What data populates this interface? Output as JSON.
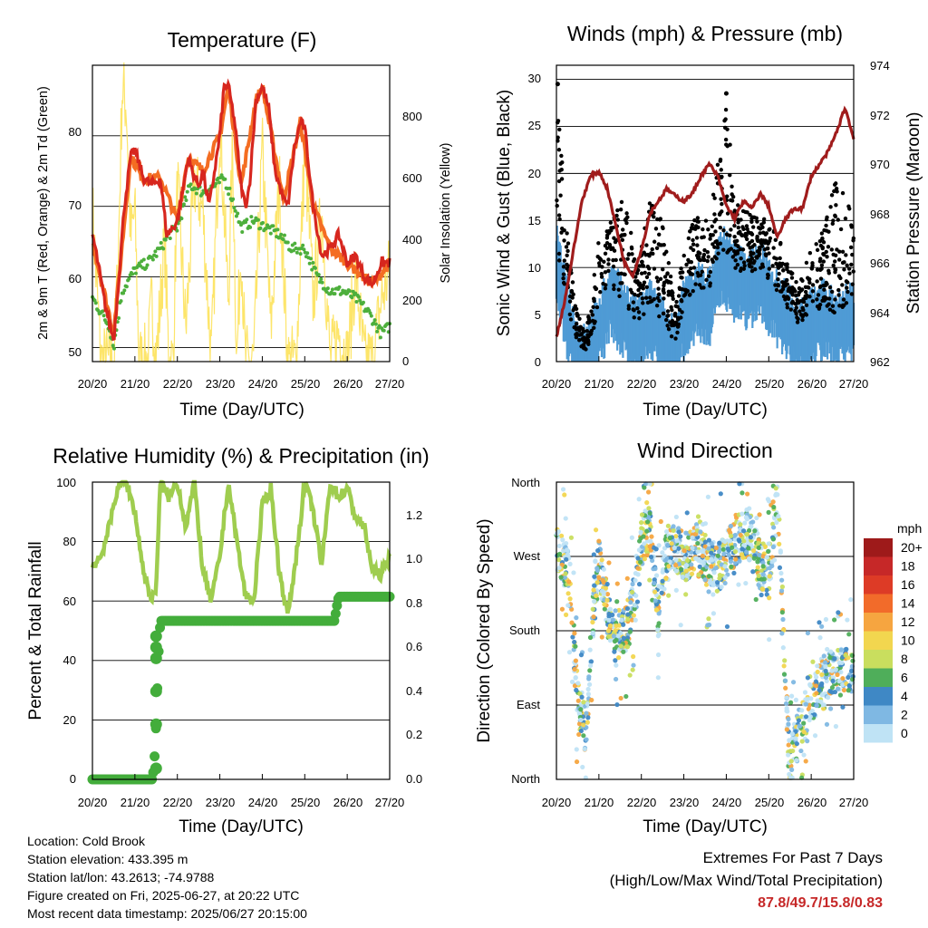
{
  "temperature": {
    "title": "Temperature (F)",
    "ylabel_left": "2m & 9m T (Red, Orange) & 2m Td (Green)",
    "ylabel_right": "Solar Insolation (Yellow)",
    "xlabel": "Time (Day/UTC)",
    "left_ticks": [
      "50",
      "60",
      "70",
      "80"
    ],
    "right_ticks": [
      "0",
      "200",
      "400",
      "600",
      "800"
    ],
    "colors": {
      "t2m": "#d7261e",
      "t9m": "#f46d22",
      "td": "#4daf3c",
      "solar": "#fde25a"
    }
  },
  "winds": {
    "title": "Winds (mph) & Pressure (mb)",
    "ylabel_left": "Sonic Wind & Gust (Blue, Black)",
    "ylabel_right": "Station Pressure (Maroon)",
    "xlabel": "Time (Day/UTC)",
    "left_ticks": [
      "0",
      "5",
      "10",
      "15",
      "20",
      "25",
      "30"
    ],
    "right_ticks": [
      "962",
      "964",
      "966",
      "968",
      "970",
      "972",
      "974"
    ],
    "colors": {
      "wind": "#4f9bd5",
      "gust": "#000000",
      "pressure": "#a01c1c"
    }
  },
  "humidity": {
    "title": "Relative Humidity (%) & Precipitation (in)",
    "ylabel_left": "Percent & Total Rainfall",
    "xlabel": "Time (Day/UTC)",
    "left_ticks": [
      "0",
      "20",
      "40",
      "60",
      "80",
      "100"
    ],
    "right_ticks": [
      "0.0",
      "0.2",
      "0.4",
      "0.6",
      "0.8",
      "1.0",
      "1.2"
    ],
    "colors": {
      "rh": "#9fcd4f",
      "precip": "#43ad3b"
    }
  },
  "direction": {
    "title": "Wind Direction",
    "ylabel_left": "Direction (Colored By Speed)",
    "xlabel": "Time (Day/UTC)",
    "ticks": [
      "North",
      "East",
      "South",
      "West",
      "North"
    ],
    "legend_title": "mph",
    "legend_labels": [
      "20+",
      "18",
      "16",
      "14",
      "12",
      "10",
      "8",
      "6",
      "4",
      "2",
      "0"
    ],
    "legend_colors": [
      "#9e1a1a",
      "#c62828",
      "#dd3b26",
      "#f26b2a",
      "#f6a540",
      "#f2d64f",
      "#c9de5e",
      "#4fae5a",
      "#3f88c5",
      "#7fb8e3",
      "#bfe3f5"
    ]
  },
  "x_ticks": [
    "20/20",
    "21/20",
    "22/20",
    "23/20",
    "24/20",
    "25/20",
    "26/20",
    "27/20"
  ],
  "info": {
    "location": "Location: Cold Brook",
    "elevation": "Station elevation: 433.395 m",
    "latlon": "Station lat/lon: 43.2613; -74.9788",
    "created": "Figure created on Fri, 2025-06-27, at 20:22 UTC",
    "recent": "Most recent data timestamp: 2025/06/27 20:15:00"
  },
  "extremes": {
    "line1": "Extremes For Past 7 Days",
    "line2": "(High/Low/Max Wind/Total Precipitation)",
    "values": "87.8/49.7/15.8/0.83"
  },
  "chart_data": [
    {
      "type": "line",
      "title": "Temperature (F)",
      "xlabel": "Time (Day/UTC)",
      "ylabel": "2m & 9m T (Red, Orange) & 2m Td (Green)",
      "ylim": [
        48,
        90
      ],
      "y2lim": [
        0,
        980
      ],
      "x_unit": "days since 20/20",
      "series": [
        {
          "name": "2m T",
          "axis": "left",
          "x": [
            0,
            0.1,
            0.3,
            0.5,
            0.6,
            0.75,
            0.9,
            1.0,
            1.2,
            1.4,
            1.6,
            1.75,
            1.9,
            2.0,
            2.15,
            2.25,
            2.35,
            2.5,
            2.6,
            2.75,
            2.9,
            3.0,
            3.1,
            3.2,
            3.35,
            3.5,
            3.6,
            3.7,
            3.85,
            4.0,
            4.15,
            4.3,
            4.5,
            4.6,
            4.75,
            4.9,
            5.0,
            5.2,
            5.4,
            5.6,
            5.8,
            6.0,
            6.2,
            6.4,
            6.6,
            6.8,
            7.0
          ],
          "y": [
            66,
            63,
            56,
            51,
            58,
            70,
            77,
            78,
            74,
            73,
            74,
            66,
            67,
            68,
            73,
            77,
            75,
            73,
            75,
            70,
            76,
            80,
            87,
            87,
            82,
            73,
            70,
            73,
            85,
            87,
            84,
            75,
            71,
            70,
            78,
            82,
            81,
            70,
            63,
            64,
            66,
            62,
            63,
            60,
            59,
            62,
            62
          ]
        },
        {
          "name": "9m T",
          "axis": "left",
          "x": [
            0,
            0.5,
            0.9,
            1.2,
            1.6,
            2.0,
            2.25,
            2.6,
            3.0,
            3.2,
            3.5,
            3.85,
            4.0,
            4.5,
            4.9,
            5.2,
            5.6,
            6.0,
            6.6,
            7.0
          ],
          "y": [
            65,
            52,
            77,
            74,
            74,
            68,
            77,
            75,
            80,
            87,
            73,
            85,
            87,
            71,
            82,
            70,
            64,
            62,
            59,
            62
          ]
        },
        {
          "name": "2m Td",
          "axis": "left",
          "x": [
            0,
            0.2,
            0.4,
            0.5,
            0.7,
            1.0,
            1.3,
            1.6,
            1.8,
            2.0,
            2.3,
            2.6,
            2.9,
            3.1,
            3.3,
            3.5,
            3.8,
            4.1,
            4.4,
            4.7,
            5.0,
            5.3,
            5.6,
            5.9,
            6.2,
            6.5,
            6.8,
            7.0
          ],
          "y": [
            57,
            55,
            53,
            50,
            58,
            61,
            62,
            64,
            66,
            67,
            73,
            72,
            73,
            74,
            71,
            67,
            68,
            67,
            66,
            64,
            64,
            60,
            58,
            58,
            57,
            55,
            52,
            53
          ]
        },
        {
          "name": "Solar Insolation",
          "axis": "right",
          "x": [
            0,
            0.2,
            0.35,
            0.5,
            0.6,
            0.7,
            0.8,
            0.9,
            1.0,
            1.1,
            1.2,
            1.3,
            1.4,
            1.5,
            1.6,
            1.7,
            1.8,
            1.9,
            2.0,
            2.2,
            2.4,
            2.6,
            2.8,
            3.0,
            3.2,
            3.3,
            3.4,
            3.5,
            3.6,
            3.8,
            4.0,
            4.2,
            4.4,
            4.6,
            4.8,
            5.0,
            5.2,
            5.4,
            5.6,
            5.8,
            6.0,
            6.2,
            6.4,
            6.6,
            6.8,
            7.0
          ],
          "y": [
            500,
            0,
            0,
            0,
            300,
            900,
            850,
            400,
            500,
            0,
            0,
            0,
            200,
            0,
            200,
            400,
            0,
            0,
            600,
            100,
            600,
            500,
            0,
            800,
            200,
            700,
            0,
            400,
            0,
            0,
            700,
            100,
            600,
            0,
            0,
            700,
            200,
            500,
            0,
            100,
            0,
            300,
            0,
            0,
            200,
            300
          ]
        }
      ]
    },
    {
      "type": "scatter",
      "title": "Winds (mph) & Pressure (mb)",
      "xlabel": "Time (Day/UTC)",
      "ylabel": "Sonic Wind & Gust (Blue, Black)",
      "ylim": [
        0,
        31.5
      ],
      "y2lim": [
        962,
        974
      ],
      "series": [
        {
          "name": "Pressure",
          "axis": "right",
          "x": [
            0,
            0.2,
            0.4,
            0.6,
            0.8,
            1.0,
            1.2,
            1.4,
            1.6,
            1.8,
            2.0,
            2.2,
            2.4,
            2.6,
            2.8,
            3.0,
            3.2,
            3.4,
            3.6,
            3.8,
            4.0,
            4.2,
            4.4,
            4.6,
            4.8,
            5.0,
            5.2,
            5.4,
            5.6,
            5.8,
            6.0,
            6.2,
            6.4,
            6.6,
            6.8,
            7.0
          ],
          "y": [
            963,
            964.5,
            966.5,
            968.5,
            969.5,
            969.7,
            969,
            967.5,
            966,
            965.5,
            966.5,
            968,
            968.5,
            969,
            968.7,
            968.5,
            968.8,
            969.5,
            970,
            969.5,
            968.3,
            967.8,
            968.5,
            968.2,
            968.8,
            968.3,
            967,
            967.8,
            968.2,
            968.2,
            969.5,
            970,
            970.5,
            971.3,
            972.3,
            971
          ]
        },
        {
          "name": "Sonic Wind",
          "axis": "left",
          "x": [
            0,
            0.3,
            0.5,
            0.7,
            1.0,
            1.3,
            1.6,
            1.9,
            2.2,
            2.5,
            2.8,
            3.0,
            3.3,
            3.6,
            3.9,
            4.2,
            4.5,
            4.8,
            5.1,
            5.4,
            5.7,
            6.0,
            6.3,
            6.6,
            6.9
          ],
          "y": [
            12,
            5,
            2,
            1,
            5,
            8,
            6,
            4,
            6,
            4,
            2,
            6,
            8,
            7,
            12,
            10,
            9,
            10,
            8,
            6,
            4,
            5,
            6,
            5,
            6
          ]
        },
        {
          "name": "Gust",
          "axis": "left",
          "x": [
            0,
            0.3,
            0.5,
            0.7,
            1.0,
            1.3,
            1.6,
            1.9,
            2.2,
            2.5,
            2.8,
            3.0,
            3.3,
            3.6,
            3.9,
            4.0,
            4.2,
            4.5,
            4.8,
            5.1,
            5.4,
            5.7,
            6.0,
            6.3,
            6.6,
            6.9
          ],
          "y": [
            29.5,
            12,
            5,
            3,
            13,
            15,
            18,
            10,
            17,
            15,
            6,
            12,
            16,
            15,
            24,
            28.5,
            17,
            16,
            16,
            15,
            11,
            8,
            12,
            14,
            20,
            17
          ]
        }
      ]
    },
    {
      "type": "line",
      "title": "Relative Humidity (%) & Precipitation (in)",
      "xlabel": "Time (Day/UTC)",
      "ylabel": "Percent & Total Rainfall",
      "ylim": [
        0,
        100
      ],
      "y2lim": [
        0,
        1.35
      ],
      "series": [
        {
          "name": "RH",
          "axis": "left",
          "x": [
            0,
            0.2,
            0.4,
            0.6,
            0.8,
            1.0,
            1.2,
            1.4,
            1.5,
            1.6,
            1.8,
            2.0,
            2.2,
            2.4,
            2.6,
            2.8,
            3.0,
            3.2,
            3.4,
            3.6,
            3.8,
            4.0,
            4.2,
            4.4,
            4.6,
            4.8,
            5.0,
            5.2,
            5.4,
            5.6,
            5.8,
            6.0,
            6.2,
            6.4,
            6.6,
            6.8,
            7.0
          ],
          "y": [
            72,
            75,
            85,
            99,
            100,
            90,
            70,
            60,
            65,
            100,
            95,
            100,
            85,
            100,
            70,
            60,
            75,
            100,
            80,
            62,
            60,
            92,
            98,
            70,
            55,
            75,
            100,
            90,
            72,
            100,
            95,
            98,
            88,
            85,
            70,
            69,
            75
          ]
        },
        {
          "name": "Total Precipitation",
          "axis": "right",
          "x": [
            0,
            0.5,
            1.0,
            1.4,
            1.45,
            1.5,
            1.55,
            1.6,
            1.8,
            2.5,
            3.0,
            4.0,
            5.0,
            5.7,
            5.75,
            5.8,
            6.0,
            6.5,
            7.0
          ],
          "y": [
            0,
            0,
            0,
            0,
            0.05,
            0.25,
            0.55,
            0.72,
            0.72,
            0.72,
            0.72,
            0.72,
            0.72,
            0.72,
            0.78,
            0.83,
            0.83,
            0.83,
            0.83
          ]
        }
      ]
    },
    {
      "type": "scatter",
      "title": "Wind Direction",
      "xlabel": "Time (Day/UTC)",
      "ylabel": "Direction (Colored By Speed)",
      "ylim": [
        0,
        360
      ],
      "series": [
        {
          "name": "Direction",
          "x": [
            0.1,
            0.3,
            0.5,
            0.7,
            0.9,
            1.0,
            1.3,
            1.5,
            1.7,
            1.9,
            2.0,
            2.2,
            2.4,
            2.6,
            2.8,
            3.0,
            3.3,
            3.6,
            3.9,
            4.0,
            4.2,
            4.5,
            4.8,
            5.0,
            5.2,
            5.5,
            5.6,
            5.8,
            6.0,
            6.3,
            6.6,
            6.9
          ],
          "y": [
            275,
            250,
            90,
            60,
            230,
            260,
            180,
            175,
            190,
            230,
            290,
            305,
            200,
            280,
            280,
            270,
            280,
            260,
            260,
            270,
            290,
            300,
            260,
            250,
            340,
            10,
            40,
            70,
            100,
            120,
            130,
            130
          ]
        }
      ]
    }
  ]
}
